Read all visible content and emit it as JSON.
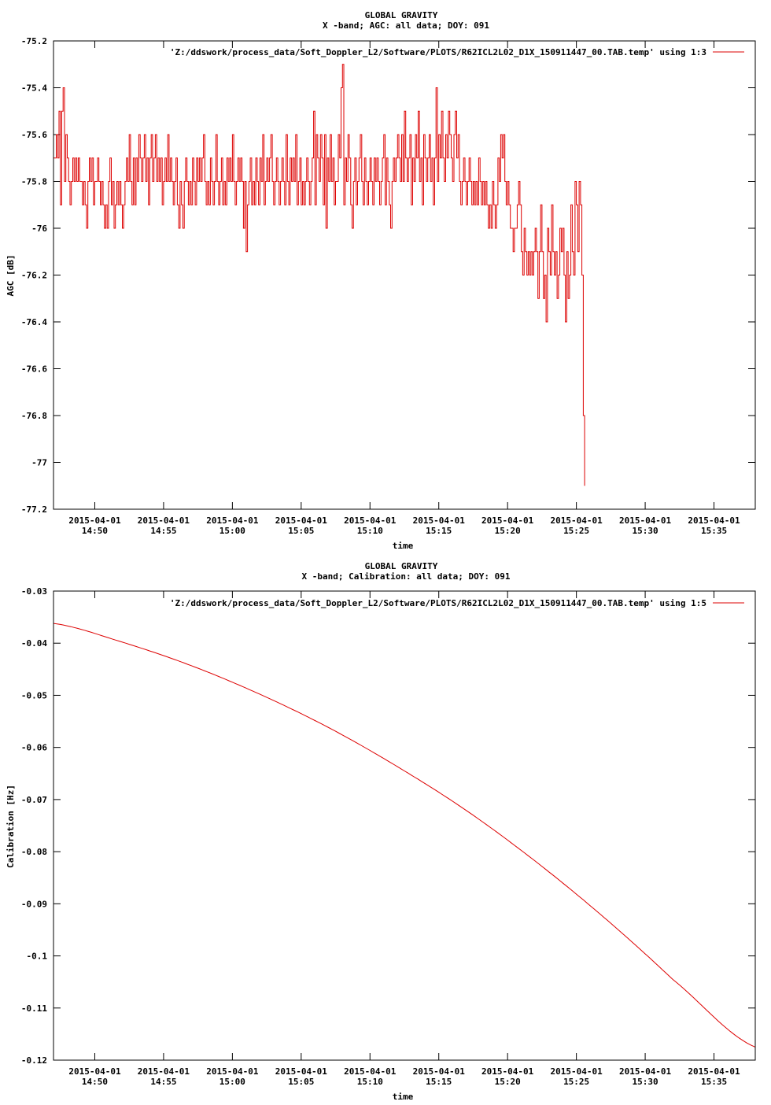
{
  "chart_data": [
    {
      "type": "line",
      "title": "GLOBAL GRAVITY",
      "subtitle": "X -band; AGC: all data; DOY: 091",
      "xlabel": "time",
      "ylabel": "AGC [dB]",
      "legend": "'Z:/ddswork/process_data/Soft_Doppler_L2/Software/PLOTS/R62ICL2L02_D1X_150911447_00.TAB.temp' using 1:3",
      "legend_position": "top-right",
      "line_color": "#dd0000",
      "grid": false,
      "xlim_minutes": [
        -3.0,
        48.0
      ],
      "ylim": [
        -77.2,
        -75.2
      ],
      "x_ticks": [
        {
          "at": 0,
          "date": "2015-04-01",
          "time": "14:50"
        },
        {
          "at": 5,
          "date": "2015-04-01",
          "time": "14:55"
        },
        {
          "at": 10,
          "date": "2015-04-01",
          "time": "15:00"
        },
        {
          "at": 15,
          "date": "2015-04-01",
          "time": "15:05"
        },
        {
          "at": 20,
          "date": "2015-04-01",
          "time": "15:10"
        },
        {
          "at": 25,
          "date": "2015-04-01",
          "time": "15:15"
        },
        {
          "at": 30,
          "date": "2015-04-01",
          "time": "15:20"
        },
        {
          "at": 35,
          "date": "2015-04-01",
          "time": "15:25"
        },
        {
          "at": 40,
          "date": "2015-04-01",
          "time": "15:30"
        },
        {
          "at": 45,
          "date": "2015-04-01",
          "time": "15:35"
        }
      ],
      "y_ticks": [
        "-75.2",
        "-75.4",
        "-75.6",
        "-75.8",
        "-76",
        "-76.2",
        "-76.4",
        "-76.6",
        "-76.8",
        "-77",
        "-77.2"
      ],
      "y_tick_values": [
        -75.2,
        -75.4,
        -75.6,
        -75.8,
        -76,
        -76.2,
        -76.4,
        -76.6,
        -76.8,
        -77,
        -77.2
      ],
      "series": [
        {
          "x_start": -3.0,
          "x_step": 0.1,
          "values": [
            -75.7,
            -75.7,
            -75.6,
            -75.7,
            -75.5,
            -75.9,
            -75.5,
            -75.4,
            -75.8,
            -75.6,
            -75.7,
            -75.8,
            -75.9,
            -75.8,
            -75.7,
            -75.8,
            -75.7,
            -75.8,
            -75.7,
            -75.8,
            -75.8,
            -75.9,
            -75.8,
            -75.9,
            -76,
            -75.8,
            -75.7,
            -75.8,
            -75.7,
            -75.9,
            -75.8,
            -75.8,
            -75.7,
            -75.8,
            -75.9,
            -75.8,
            -75.9,
            -76,
            -75.9,
            -76,
            -75.8,
            -75.7,
            -75.9,
            -75.8,
            -76,
            -75.9,
            -75.8,
            -75.9,
            -75.8,
            -75.9,
            -76,
            -75.9,
            -75.8,
            -75.7,
            -75.8,
            -75.6,
            -75.8,
            -75.9,
            -75.7,
            -75.9,
            -75.7,
            -75.8,
            -75.6,
            -75.7,
            -75.8,
            -75.7,
            -75.6,
            -75.8,
            -75.7,
            -75.9,
            -75.7,
            -75.6,
            -75.8,
            -75.7,
            -75.6,
            -75.8,
            -75.7,
            -75.8,
            -75.7,
            -75.9,
            -75.8,
            -75.7,
            -75.8,
            -75.6,
            -75.8,
            -75.7,
            -75.8,
            -75.9,
            -75.8,
            -75.7,
            -75.9,
            -76,
            -75.8,
            -75.9,
            -76,
            -75.8,
            -75.7,
            -75.8,
            -75.9,
            -75.8,
            -75.9,
            -75.7,
            -75.8,
            -75.9,
            -75.7,
            -75.8,
            -75.7,
            -75.8,
            -75.7,
            -75.6,
            -75.8,
            -75.9,
            -75.8,
            -75.9,
            -75.7,
            -75.8,
            -75.9,
            -75.8,
            -75.6,
            -75.8,
            -75.9,
            -75.8,
            -75.7,
            -75.9,
            -75.8,
            -75.9,
            -75.7,
            -75.8,
            -75.7,
            -75.8,
            -75.6,
            -75.8,
            -75.9,
            -75.8,
            -75.7,
            -75.8,
            -75.7,
            -75.8,
            -76,
            -75.8,
            -76.1,
            -75.9,
            -75.8,
            -75.7,
            -75.9,
            -75.8,
            -75.9,
            -75.7,
            -75.8,
            -75.9,
            -75.7,
            -75.8,
            -75.6,
            -75.9,
            -75.8,
            -75.7,
            -75.8,
            -75.7,
            -75.6,
            -75.8,
            -75.9,
            -75.8,
            -75.7,
            -75.8,
            -75.9,
            -75.8,
            -75.7,
            -75.8,
            -75.9,
            -75.6,
            -75.8,
            -75.9,
            -75.7,
            -75.8,
            -75.7,
            -75.8,
            -75.6,
            -75.9,
            -75.8,
            -75.7,
            -75.9,
            -75.8,
            -75.9,
            -75.8,
            -75.7,
            -75.8,
            -75.9,
            -75.8,
            -75.7,
            -75.5,
            -75.9,
            -75.6,
            -75.7,
            -75.8,
            -75.6,
            -75.7,
            -75.9,
            -75.6,
            -76,
            -75.7,
            -75.8,
            -75.6,
            -75.8,
            -75.7,
            -75.9,
            -75.8,
            -75.8,
            -75.6,
            -75.7,
            -75.4,
            -75.3,
            -75.9,
            -75.7,
            -75.8,
            -75.6,
            -75.7,
            -75.9,
            -76,
            -75.8,
            -75.7,
            -75.9,
            -75.8,
            -75.7,
            -75.6,
            -75.8,
            -75.9,
            -75.7,
            -75.8,
            -75.9,
            -75.8,
            -75.7,
            -75.8,
            -75.9,
            -75.7,
            -75.8,
            -75.7,
            -75.8,
            -75.9,
            -75.8,
            -75.7,
            -75.6,
            -75.9,
            -75.7,
            -75.8,
            -75.9,
            -76,
            -75.8,
            -75.7,
            -75.8,
            -75.7,
            -75.6,
            -75.7,
            -75.8,
            -75.6,
            -75.8,
            -75.5,
            -75.7,
            -75.8,
            -75.7,
            -75.6,
            -75.9,
            -75.7,
            -75.8,
            -75.6,
            -75.7,
            -75.5,
            -75.8,
            -75.7,
            -75.9,
            -75.6,
            -75.7,
            -75.8,
            -75.7,
            -75.6,
            -75.8,
            -75.7,
            -75.9,
            -75.7,
            -75.4,
            -75.8,
            -75.6,
            -75.7,
            -75.5,
            -75.7,
            -75.8,
            -75.6,
            -75.7,
            -75.5,
            -75.6,
            -75.7,
            -75.8,
            -75.6,
            -75.5,
            -75.7,
            -75.6,
            -75.8,
            -75.9,
            -75.8,
            -75.7,
            -75.8,
            -75.9,
            -75.8,
            -75.7,
            -75.8,
            -75.9,
            -75.8,
            -75.9,
            -75.8,
            -75.9,
            -75.7,
            -75.8,
            -75.9,
            -75.8,
            -75.9,
            -75.8,
            -75.9,
            -76,
            -75.9,
            -76,
            -75.8,
            -75.9,
            -76,
            -75.9,
            -75.7,
            -75.8,
            -75.6,
            -75.7,
            -75.6,
            -75.8,
            -75.9,
            -75.8,
            -75.9,
            -76,
            -76,
            -76.1,
            -76,
            -76,
            -75.9,
            -75.8,
            -75.9,
            -76.1,
            -76.2,
            -76,
            -76.1,
            -76.2,
            -76.1,
            -76.2,
            -76.1,
            -76.2,
            -76.1,
            -76,
            -76.1,
            -76.3,
            -76.1,
            -75.9,
            -76.1,
            -76.3,
            -76.2,
            -76.4,
            -76,
            -76.1,
            -76.2,
            -75.9,
            -76.1,
            -76.2,
            -76.1,
            -76.3,
            -76.2,
            -76,
            -76.1,
            -76,
            -76.2,
            -76.4,
            -76.1,
            -76.3,
            -76.2,
            -75.9,
            -76.1,
            -76.2,
            -75.8,
            -75.9,
            -76.1,
            -75.8,
            -75.9,
            -76.2,
            -76.8,
            -77.1
          ]
        }
      ]
    },
    {
      "type": "line",
      "title": "GLOBAL GRAVITY",
      "subtitle": "X -band; Calibration: all data; DOY: 091",
      "xlabel": "time",
      "ylabel": "Calibration [Hz]",
      "legend": "'Z:/ddswork/process_data/Soft_Doppler_L2/Software/PLOTS/R62ICL2L02_D1X_150911447_00.TAB.temp' using 1:5",
      "legend_position": "top-right",
      "line_color": "#dd0000",
      "grid": false,
      "xlim_minutes": [
        -3.0,
        48.0
      ],
      "ylim": [
        -0.12,
        -0.03
      ],
      "x_ticks": [
        {
          "at": 0,
          "date": "2015-04-01",
          "time": "14:50"
        },
        {
          "at": 5,
          "date": "2015-04-01",
          "time": "14:55"
        },
        {
          "at": 10,
          "date": "2015-04-01",
          "time": "15:00"
        },
        {
          "at": 15,
          "date": "2015-04-01",
          "time": "15:05"
        },
        {
          "at": 20,
          "date": "2015-04-01",
          "time": "15:10"
        },
        {
          "at": 25,
          "date": "2015-04-01",
          "time": "15:15"
        },
        {
          "at": 30,
          "date": "2015-04-01",
          "time": "15:20"
        },
        {
          "at": 35,
          "date": "2015-04-01",
          "time": "15:25"
        },
        {
          "at": 40,
          "date": "2015-04-01",
          "time": "15:30"
        },
        {
          "at": 45,
          "date": "2015-04-01",
          "time": "15:35"
        }
      ],
      "y_ticks": [
        "-0.03",
        "-0.04",
        "-0.05",
        "-0.06",
        "-0.07",
        "-0.08",
        "-0.09",
        "-0.1",
        "-0.11",
        "-0.12"
      ],
      "y_tick_values": [
        -0.03,
        -0.04,
        -0.05,
        -0.06,
        -0.07,
        -0.08,
        -0.09,
        -0.1,
        -0.11,
        -0.12
      ],
      "series": [
        {
          "x": [
            -3.0,
            2.0,
            7.0,
            12.0,
            17.0,
            22.0,
            27.0,
            32.0,
            37.0,
            42.0,
            48.0
          ],
          "values": [
            -0.0362,
            -0.0398,
            -0.0443,
            -0.0498,
            -0.0562,
            -0.0637,
            -0.0721,
            -0.0818,
            -0.0926,
            -0.1045,
            -0.1175
          ]
        }
      ]
    }
  ]
}
